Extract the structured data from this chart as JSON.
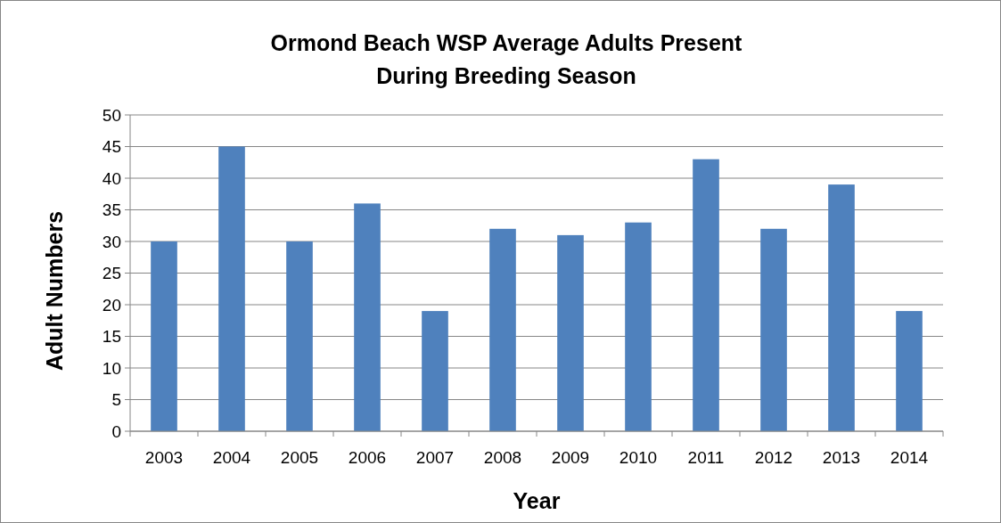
{
  "chart_data": {
    "type": "bar",
    "title": "Ormond Beach WSP Average Adults Present\nDuring Breeding Season",
    "xlabel": "Year",
    "ylabel": "Adult Numbers",
    "categories": [
      "2003",
      "2004",
      "2005",
      "2006",
      "2007",
      "2008",
      "2009",
      "2010",
      "2011",
      "2012",
      "2013",
      "2014"
    ],
    "values": [
      30,
      45,
      30,
      36,
      19,
      32,
      31,
      33,
      43,
      32,
      39,
      19
    ],
    "color": "#4f81bd",
    "ylim": [
      0,
      50
    ],
    "yticks": [
      0,
      5,
      10,
      15,
      20,
      25,
      30,
      35,
      40,
      45,
      50
    ],
    "grid": "y"
  }
}
